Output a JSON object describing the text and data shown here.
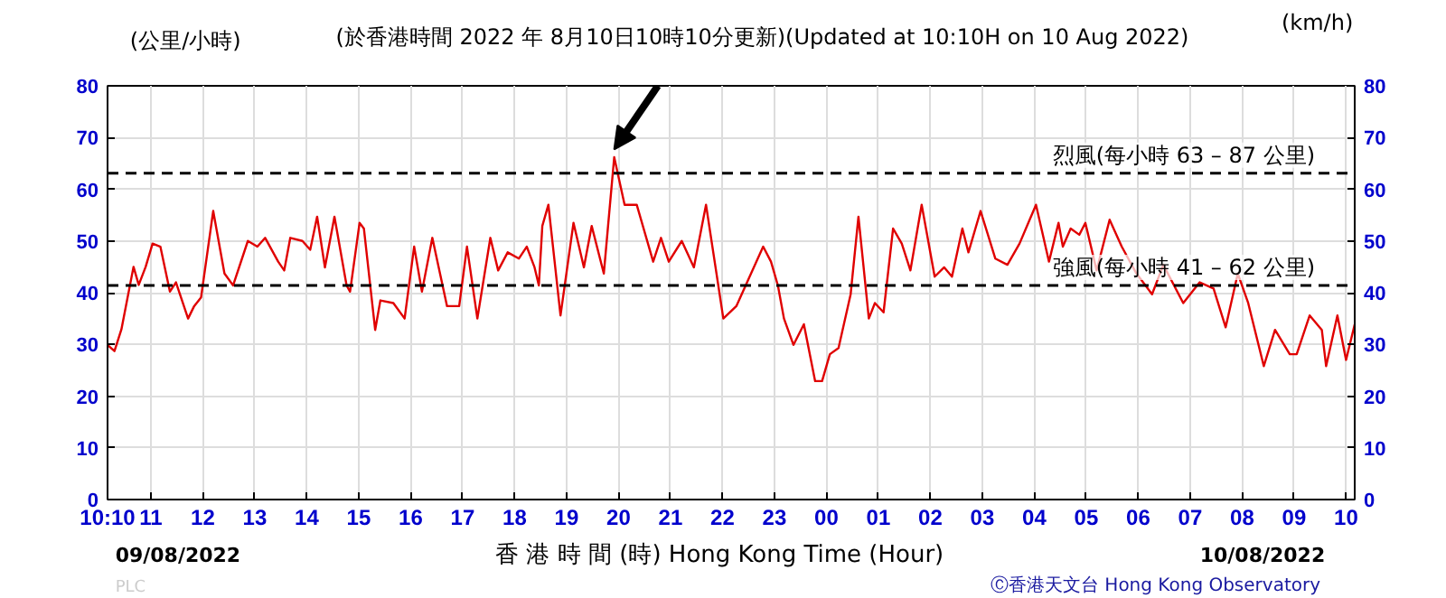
{
  "chart_data": {
    "type": "line",
    "title": "(於香港時間 2022 年 8月10日10時10分更新)(Updated at 10:10H on 10 Aug 2022)",
    "xlabel": "香 港 時 間 (時)  Hong Kong Time (Hour)",
    "ylabel": "(公里/小時)",
    "y2label": "(km/h)",
    "annotations": [
      "09/08/2022",
      "10/08/2022",
      "Ⓒ香港天文台 Hong Kong Observatory",
      "PLC"
    ],
    "xlim": [
      "2022-08-09T10:10",
      "2022-08-10T10:10"
    ],
    "xticks": [
      {
        "value": "2022-08-09T10:10",
        "label": "10:10"
      },
      {
        "value": "2022-08-09T11:00",
        "label": "11"
      },
      {
        "value": "2022-08-09T12:00",
        "label": "12"
      },
      {
        "value": "2022-08-09T13:00",
        "label": "13"
      },
      {
        "value": "2022-08-09T14:00",
        "label": "14"
      },
      {
        "value": "2022-08-09T15:00",
        "label": "15"
      },
      {
        "value": "2022-08-09T16:00",
        "label": "16"
      },
      {
        "value": "2022-08-09T17:00",
        "label": "17"
      },
      {
        "value": "2022-08-09T18:00",
        "label": "18"
      },
      {
        "value": "2022-08-09T19:00",
        "label": "19"
      },
      {
        "value": "2022-08-09T20:00",
        "label": "20"
      },
      {
        "value": "2022-08-09T21:00",
        "label": "21"
      },
      {
        "value": "2022-08-09T22:00",
        "label": "22"
      },
      {
        "value": "2022-08-09T23:00",
        "label": "23"
      },
      {
        "value": "2022-08-10T00:00",
        "label": "00"
      },
      {
        "value": "2022-08-10T01:00",
        "label": "01"
      },
      {
        "value": "2022-08-10T02:00",
        "label": "02"
      },
      {
        "value": "2022-08-10T03:00",
        "label": "03"
      },
      {
        "value": "2022-08-10T04:00",
        "label": "04"
      },
      {
        "value": "2022-08-10T05:00",
        "label": "05"
      },
      {
        "value": "2022-08-10T06:00",
        "label": "06"
      },
      {
        "value": "2022-08-10T07:00",
        "label": "07"
      },
      {
        "value": "2022-08-10T08:00",
        "label": "08"
      },
      {
        "value": "2022-08-10T09:00",
        "label": "09"
      },
      {
        "value": "2022-08-10T10:00",
        "label": "10"
      }
    ],
    "ylim": [
      0,
      80
    ],
    "yticks": [
      0,
      10,
      20,
      30,
      40,
      50,
      60,
      70,
      80
    ],
    "y2lim": [
      0,
      80
    ],
    "y2ticks": [
      0,
      10,
      20,
      30,
      40,
      50,
      60,
      70,
      80
    ],
    "grid": true,
    "marker": "none",
    "line_style": "solid",
    "ref_lines": [
      {
        "axis": "y",
        "value": 63.1,
        "label": "烈風(每小時 63 – 87 公里)",
        "color": "#000000",
        "line_style": "dashed"
      },
      {
        "axis": "y",
        "value": 41.4,
        "label": "強風(每小時 41 – 62 公里)",
        "color": "#000000",
        "line_style": "dashed"
      }
    ],
    "series": [
      {
        "color": "#e00000",
        "x": [
          "2022-08-09T10:10",
          "2022-08-09T10:18",
          "2022-08-09T10:26",
          "2022-08-09T10:40",
          "2022-08-09T10:46",
          "2022-08-09T10:54",
          "2022-08-09T11:02",
          "2022-08-09T11:11",
          "2022-08-09T11:22",
          "2022-08-09T11:29",
          "2022-08-09T11:43",
          "2022-08-09T11:50",
          "2022-08-09T11:58",
          "2022-08-09T12:12",
          "2022-08-09T12:25",
          "2022-08-09T12:35",
          "2022-08-09T12:52",
          "2022-08-09T13:03",
          "2022-08-09T13:12",
          "2022-08-09T13:27",
          "2022-08-09T13:34",
          "2022-08-09T13:41",
          "2022-08-09T13:55",
          "2022-08-09T14:04",
          "2022-08-09T14:12",
          "2022-08-09T14:21",
          "2022-08-09T14:32",
          "2022-08-09T14:46",
          "2022-08-09T14:50",
          "2022-08-09T15:01",
          "2022-08-09T15:06",
          "2022-08-09T15:19",
          "2022-08-09T15:25",
          "2022-08-09T15:40",
          "2022-08-09T15:53",
          "2022-08-09T16:04",
          "2022-08-09T16:13",
          "2022-08-09T16:25",
          "2022-08-09T16:42",
          "2022-08-09T16:56",
          "2022-08-09T17:05",
          "2022-08-09T17:17",
          "2022-08-09T17:32",
          "2022-08-09T17:41",
          "2022-08-09T17:52",
          "2022-08-09T18:05",
          "2022-08-09T18:14",
          "2022-08-09T18:23",
          "2022-08-09T18:28",
          "2022-08-09T18:32",
          "2022-08-09T18:39",
          "2022-08-09T18:53",
          "2022-08-09T19:08",
          "2022-08-09T19:20",
          "2022-08-09T19:29",
          "2022-08-09T19:43",
          "2022-08-09T19:55",
          "2022-08-09T20:07",
          "2022-08-09T20:21",
          "2022-08-09T20:40",
          "2022-08-09T20:49",
          "2022-08-09T20:58",
          "2022-08-09T21:13",
          "2022-08-09T21:27",
          "2022-08-09T21:41",
          "2022-08-09T22:01",
          "2022-08-09T22:16",
          "2022-08-09T22:33",
          "2022-08-09T22:47",
          "2022-08-09T22:56",
          "2022-08-09T23:04",
          "2022-08-09T23:11",
          "2022-08-09T23:22",
          "2022-08-09T23:34",
          "2022-08-09T23:47",
          "2022-08-09T23:55",
          "2022-08-10T00:04",
          "2022-08-10T00:14",
          "2022-08-10T00:28",
          "2022-08-10T00:37",
          "2022-08-10T00:49",
          "2022-08-10T00:56",
          "2022-08-10T01:06",
          "2022-08-10T01:17",
          "2022-08-10T01:27",
          "2022-08-10T01:37",
          "2022-08-10T01:50",
          "2022-08-10T02:05",
          "2022-08-10T02:16",
          "2022-08-10T02:25",
          "2022-08-10T02:37",
          "2022-08-10T02:44",
          "2022-08-10T02:58",
          "2022-08-10T03:15",
          "2022-08-10T03:29",
          "2022-08-10T03:43",
          "2022-08-10T04:02",
          "2022-08-10T04:17",
          "2022-08-10T04:28",
          "2022-08-10T04:33",
          "2022-08-10T04:42",
          "2022-08-10T04:52",
          "2022-08-10T04:59",
          "2022-08-10T05:12",
          "2022-08-10T05:27",
          "2022-08-10T05:41",
          "2022-08-10T05:58",
          "2022-08-10T06:16",
          "2022-08-10T06:29",
          "2022-08-10T06:52",
          "2022-08-10T07:11",
          "2022-08-10T07:27",
          "2022-08-10T07:41",
          "2022-08-10T07:55",
          "2022-08-10T08:07",
          "2022-08-10T08:25",
          "2022-08-10T08:38",
          "2022-08-10T08:55",
          "2022-08-10T09:03",
          "2022-08-10T09:18",
          "2022-08-10T09:32",
          "2022-08-10T09:37",
          "2022-08-10T09:50",
          "2022-08-10T10:00",
          "2022-08-10T10:10"
        ],
        "values": [
          29.9,
          28.7,
          32.9,
          45,
          41.5,
          45,
          49.5,
          48.9,
          40.2,
          42,
          35,
          37.4,
          39.1,
          55.8,
          43.7,
          41.4,
          50,
          48.9,
          50.6,
          46,
          44.3,
          50.6,
          50,
          48.3,
          54.7,
          44.9,
          54.7,
          41.4,
          40.2,
          53.5,
          52.4,
          32.8,
          38.5,
          38,
          35,
          48.9,
          40.2,
          50.6,
          37.4,
          37.4,
          48.9,
          35,
          50.6,
          44.3,
          47.8,
          46.6,
          48.9,
          44.9,
          41.4,
          52.9,
          57,
          35.6,
          53.5,
          44.9,
          52.9,
          43.7,
          66.2,
          57,
          57,
          46,
          50.6,
          46,
          50,
          44.9,
          57,
          35,
          37.4,
          43.7,
          48.9,
          46,
          41.4,
          35,
          29.9,
          33.9,
          22.9,
          22.9,
          28.1,
          29.3,
          39.7,
          54.7,
          35,
          38,
          36.2,
          52.4,
          49.5,
          44.3,
          57,
          43.1,
          44.9,
          43.1,
          52.4,
          47.8,
          55.8,
          46.6,
          45.4,
          49.5,
          57,
          46,
          53.5,
          48.9,
          52.4,
          51.2,
          53.5,
          44.3,
          54.1,
          48.9,
          43.7,
          39.7,
          45.4,
          38,
          42,
          40.8,
          33.3,
          43.7,
          38,
          25.8,
          32.8,
          28.1,
          28.1,
          35.6,
          32.8,
          25.8,
          35.6,
          27,
          33.9
        ]
      }
    ]
  }
}
